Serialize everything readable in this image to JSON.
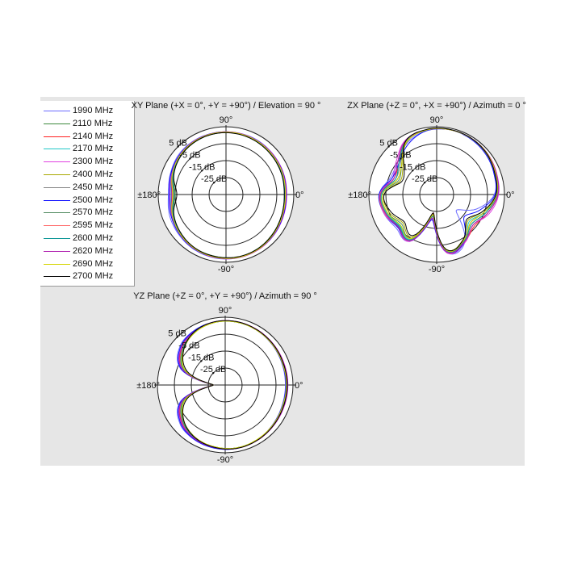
{
  "legend": [
    {
      "name": "1990 MHz",
      "color": "#6a6aff"
    },
    {
      "name": "2110 MHz",
      "color": "#3d8a3d"
    },
    {
      "name": "2140 MHz",
      "color": "#ff2020"
    },
    {
      "name": "2170 MHz",
      "color": "#20c8c8"
    },
    {
      "name": "2300 MHz",
      "color": "#e040e0"
    },
    {
      "name": "2400 MHz",
      "color": "#a8a800"
    },
    {
      "name": "2450 MHz",
      "color": "#888888"
    },
    {
      "name": "2500 MHz",
      "color": "#1010ff"
    },
    {
      "name": "2570 MHz",
      "color": "#4f8a5f"
    },
    {
      "name": "2595 MHz",
      "color": "#ff6a6a"
    },
    {
      "name": "2600 MHz",
      "color": "#109898"
    },
    {
      "name": "2620 MHz",
      "color": "#b020b0"
    },
    {
      "name": "2690 MHz",
      "color": "#d4d400"
    },
    {
      "name": "2700 MHz",
      "color": "#000000"
    }
  ],
  "chart_data": [
    {
      "type": "polar-line",
      "title": "XY Plane (+X = 0°, +Y = +90°) / Elevation = 90 °",
      "angle_labels": {
        "top": "90°",
        "right": "0°",
        "left": "±180°",
        "bottom": "-90°"
      },
      "radial_ticks": [
        {
          "value": 5,
          "label": "5 dB"
        },
        {
          "value": -5,
          "label": "-5 dB"
        },
        {
          "value": -15,
          "label": "-15 dB"
        },
        {
          "value": -25,
          "label": "-25 dB"
        }
      ],
      "radial_range_db": [
        -35,
        5
      ],
      "angles_deg": [
        0,
        20,
        40,
        60,
        80,
        100,
        120,
        140,
        160,
        180,
        200,
        220,
        240,
        260,
        280,
        300,
        320,
        340
      ],
      "series": [
        [
          0.5,
          1,
          1.5,
          2,
          2,
          2,
          2,
          1.5,
          0,
          -1,
          0.5,
          1.5,
          2.5,
          3,
          3,
          2.5,
          2,
          1
        ],
        [
          -0.5,
          0,
          0.5,
          1,
          1.5,
          1.5,
          1,
          0,
          -2,
          -5,
          -2,
          0,
          1.5,
          2,
          2.5,
          2,
          1,
          0
        ],
        [
          0,
          0.5,
          1,
          1.5,
          1.8,
          1.8,
          1.5,
          0.5,
          -1,
          -3,
          -1,
          0.5,
          2,
          2.5,
          2.8,
          2.5,
          1.5,
          0.5
        ],
        [
          0.3,
          0.8,
          1.2,
          1.6,
          1.9,
          1.9,
          1.6,
          0.8,
          -0.8,
          -2.5,
          -0.8,
          0.8,
          2,
          2.6,
          2.9,
          2.6,
          1.7,
          0.8
        ],
        [
          0.8,
          1.2,
          1.5,
          1.8,
          2,
          2,
          1.8,
          1,
          -0.5,
          -2,
          -0.5,
          1,
          2.2,
          2.8,
          3,
          2.8,
          2,
          1.2
        ],
        [
          0.2,
          0.6,
          1,
          1.4,
          1.7,
          1.8,
          1.4,
          0.4,
          -1.2,
          -3.5,
          -1.2,
          0.6,
          1.9,
          2.4,
          2.7,
          2.4,
          1.4,
          0.5
        ],
        [
          -0.2,
          0.3,
          0.8,
          1.3,
          1.6,
          1.6,
          1.3,
          0.3,
          -1.5,
          -4,
          -1.5,
          0.3,
          1.7,
          2.3,
          2.6,
          2.3,
          1.3,
          0.3
        ],
        [
          0.6,
          1,
          1.3,
          1.7,
          1.9,
          2,
          1.7,
          1,
          -0.3,
          -1.5,
          -0.3,
          1,
          2.2,
          2.7,
          2.9,
          2.6,
          1.8,
          1
        ],
        [
          -0.4,
          0.1,
          0.6,
          1.1,
          1.5,
          1.5,
          1.2,
          0.2,
          -1.8,
          -4.5,
          -1.8,
          0.2,
          1.6,
          2.2,
          2.5,
          2.2,
          1.2,
          0.1
        ],
        [
          0,
          0.4,
          0.9,
          1.4,
          1.7,
          1.7,
          1.4,
          0.4,
          -1.4,
          -3.8,
          -1.4,
          0.4,
          1.8,
          2.4,
          2.7,
          2.4,
          1.4,
          0.4
        ],
        [
          -0.3,
          0.2,
          0.7,
          1.2,
          1.6,
          1.6,
          1.3,
          0.3,
          -1.7,
          -4.3,
          -1.7,
          0.3,
          1.7,
          2.3,
          2.6,
          2.3,
          1.3,
          0.2
        ],
        [
          0.4,
          0.8,
          1.2,
          1.6,
          1.9,
          1.9,
          1.6,
          0.7,
          -1,
          -3,
          -1,
          0.7,
          2,
          2.6,
          2.9,
          2.6,
          1.6,
          0.7
        ],
        [
          0.1,
          0.6,
          1,
          1.5,
          1.8,
          1.8,
          1.5,
          0.6,
          -1.2,
          -3.5,
          -1.2,
          0.6,
          1.9,
          2.5,
          2.8,
          2.5,
          1.5,
          0.5
        ],
        [
          -0.6,
          -0.1,
          0.4,
          1,
          1.4,
          1.5,
          1.1,
          0,
          -2.2,
          -6,
          -2.2,
          0,
          1.5,
          2.1,
          2.4,
          2.1,
          1.1,
          0
        ]
      ]
    },
    {
      "type": "polar-line",
      "title": "ZX Plane (+Z = 0°, +X = +90°) / Azimuth = 0 °",
      "angle_labels": {
        "top": "90°",
        "right": "0°",
        "left": "±180°",
        "bottom": "-90°"
      },
      "radial_ticks": [
        {
          "value": 5,
          "label": "5 dB"
        },
        {
          "value": -5,
          "label": "-5 dB"
        },
        {
          "value": -15,
          "label": "-15 dB"
        },
        {
          "value": -25,
          "label": "-25 dB"
        }
      ],
      "radial_range_db": [
        -35,
        5
      ],
      "angles_deg": [
        0,
        20,
        40,
        60,
        80,
        100,
        120,
        140,
        160,
        180,
        200,
        220,
        240,
        260,
        280,
        300,
        320,
        340
      ],
      "series": [
        [
          -1,
          1,
          3,
          4,
          4,
          3,
          0,
          -5,
          -6,
          -1,
          -2,
          -4,
          -3,
          -20,
          0,
          -2,
          -20,
          -10
        ],
        [
          0,
          2,
          3.5,
          4,
          4,
          3.5,
          1,
          -8,
          -10,
          -3,
          -4,
          -7,
          -5,
          -22,
          -1,
          -3,
          -8,
          -4
        ],
        [
          1,
          2.5,
          3.5,
          4,
          4,
          3.5,
          1.5,
          -6,
          -8,
          -2,
          -3,
          -6,
          -4,
          -24,
          -0.5,
          -2.5,
          -6,
          -3
        ],
        [
          0.5,
          2,
          3.5,
          4,
          4,
          3.5,
          1,
          -7,
          -9,
          -2.5,
          -3.5,
          -6.5,
          -4.5,
          -22,
          -1,
          -3,
          -10,
          -5
        ],
        [
          1.5,
          2.5,
          3.5,
          4,
          4,
          3.5,
          2,
          -4,
          -7,
          -1.5,
          -2,
          -5,
          -3,
          -21,
          0,
          -2,
          -7,
          -2
        ],
        [
          0,
          1.5,
          3,
          3.8,
          4,
          3.5,
          0.5,
          -9,
          -12,
          -4,
          -5,
          -9,
          -6,
          -23,
          -2,
          -4,
          -11,
          -6
        ],
        [
          0.3,
          1.8,
          3.3,
          3.9,
          4,
          3.4,
          0.8,
          -7,
          -9,
          -2,
          -3,
          -6,
          -4,
          -22,
          -1,
          -3,
          -9,
          -5
        ],
        [
          -0.5,
          1,
          2.5,
          3.5,
          4,
          3,
          -1,
          -6,
          -7,
          -1,
          -2.5,
          -5,
          -3.5,
          -20,
          -0.5,
          -2.5,
          -14,
          -8
        ],
        [
          0.2,
          1.7,
          3.2,
          3.9,
          4,
          3.4,
          0.9,
          -8,
          -11,
          -3,
          -4,
          -8,
          -5,
          -23,
          -1.5,
          -3.5,
          -9,
          -5
        ],
        [
          1,
          2.2,
          3.5,
          4,
          4,
          3.5,
          1.5,
          -5,
          -8,
          -1.5,
          -2.5,
          -5.5,
          -3.5,
          -22,
          -0.5,
          -2.5,
          -7,
          -3
        ],
        [
          0.6,
          2,
          3.4,
          4,
          4,
          3.5,
          1.2,
          -6,
          -9,
          -2,
          -3,
          -6,
          -4,
          -22,
          -1,
          -3,
          -8,
          -4
        ],
        [
          1.2,
          2.4,
          3.5,
          4,
          4,
          3.6,
          1.8,
          -5,
          -8,
          -1.8,
          -2.8,
          -5.5,
          -3.5,
          -21,
          -0.5,
          -2.5,
          -7,
          -3
        ],
        [
          0.4,
          1.9,
          3.4,
          3.9,
          4,
          3.5,
          0.8,
          -8,
          -10,
          -3,
          -4,
          -7,
          -5,
          -23,
          -1.5,
          -3.5,
          -9,
          -5
        ],
        [
          0,
          1.5,
          3.2,
          4,
          4.2,
          3.8,
          1.5,
          -10,
          -13,
          -4,
          -6,
          -10,
          -7,
          -24,
          -2,
          -4,
          -12,
          -6
        ]
      ]
    },
    {
      "type": "polar-line",
      "title": "YZ Plane (+Z = 0°, +Y = +90°) / Azimuth = 90 °",
      "angle_labels": {
        "top": "90°",
        "right": "0°",
        "left": "±180°",
        "bottom": "-90°"
      },
      "radial_ticks": [
        {
          "value": 5,
          "label": "5 dB"
        },
        {
          "value": -5,
          "label": "-5 dB"
        },
        {
          "value": -15,
          "label": "-15 dB"
        },
        {
          "value": -25,
          "label": "-25 dB"
        }
      ],
      "radial_range_db": [
        -35,
        5
      ],
      "angles_deg": [
        0,
        20,
        40,
        60,
        80,
        100,
        120,
        140,
        160,
        180,
        200,
        220,
        240,
        260,
        280,
        300,
        320,
        340
      ],
      "series": [
        [
          0.5,
          0.8,
          1.5,
          2.3,
          2.8,
          2.8,
          2,
          0,
          -7,
          -28,
          -7,
          0,
          2,
          2.8,
          3,
          2.5,
          1.5,
          0.7
        ],
        [
          1.2,
          1.3,
          1.8,
          2.4,
          2.7,
          2.4,
          0.8,
          -2.5,
          -9.5,
          -28,
          -9.5,
          -2.5,
          0.8,
          2,
          2.7,
          2.4,
          1.8,
          1.2
        ],
        [
          1.8,
          1.8,
          2.2,
          2.6,
          2.9,
          2.6,
          1.2,
          -1.5,
          -8.5,
          -28,
          -8.5,
          -1.5,
          1.2,
          2.3,
          2.9,
          2.6,
          2.2,
          1.8
        ],
        [
          1.5,
          1.5,
          2,
          2.5,
          2.8,
          2.5,
          1,
          -2,
          -9,
          -28,
          -9,
          -2,
          1,
          2.2,
          2.8,
          2.5,
          2,
          1.5
        ],
        [
          2,
          2,
          2.3,
          2.7,
          3,
          2.8,
          1.5,
          -1,
          -8,
          -28,
          -8,
          -1,
          1.5,
          2.5,
          3,
          2.8,
          2.3,
          2
        ],
        [
          1,
          1.1,
          1.7,
          2.3,
          2.7,
          2.5,
          0.8,
          -3,
          -10,
          -28,
          -10,
          -3,
          0.5,
          2,
          2.7,
          2.3,
          1.7,
          1
        ],
        [
          1.4,
          1.4,
          1.9,
          2.4,
          2.8,
          2.5,
          1,
          -2,
          -9,
          -28,
          -9,
          -2,
          1,
          2.2,
          2.8,
          2.5,
          1.9,
          1.4
        ],
        [
          0.8,
          1,
          1.6,
          2.3,
          2.8,
          2.7,
          1.8,
          -0.5,
          -7.5,
          -28,
          -7.5,
          -0.5,
          1.8,
          2.7,
          3,
          2.5,
          1.6,
          0.9
        ],
        [
          1.2,
          1.2,
          1.8,
          2.4,
          2.7,
          2.4,
          0.9,
          -2.5,
          -9.5,
          -28,
          -9.5,
          -2.5,
          0.9,
          2.1,
          2.7,
          2.4,
          1.8,
          1.2
        ],
        [
          1.7,
          1.7,
          2.1,
          2.6,
          2.9,
          2.6,
          1.1,
          -1.8,
          -8.8,
          -28,
          -8.8,
          -1.8,
          1.1,
          2.3,
          2.9,
          2.6,
          2.1,
          1.7
        ],
        [
          1.3,
          1.3,
          1.9,
          2.4,
          2.8,
          2.5,
          1,
          -2.2,
          -9.2,
          -28,
          -9.2,
          -2.2,
          1,
          2.2,
          2.8,
          2.4,
          1.9,
          1.3
        ],
        [
          1.9,
          1.9,
          2.2,
          2.7,
          3,
          2.7,
          1.4,
          -1.2,
          -8.2,
          -28,
          -8.2,
          -1.2,
          1.4,
          2.4,
          3,
          2.7,
          2.2,
          1.9
        ],
        [
          1.1,
          1.2,
          1.7,
          2.3,
          2.7,
          2.4,
          0.7,
          -2.8,
          -9.8,
          -28,
          -9.8,
          -2.8,
          0.7,
          2,
          2.7,
          2.3,
          1.7,
          1.1
        ],
        [
          1.6,
          1.6,
          2.1,
          2.6,
          3,
          2.8,
          1.3,
          -3,
          -11,
          -28,
          -11,
          -3,
          0.8,
          2.3,
          3,
          2.7,
          2.1,
          1.6
        ]
      ]
    }
  ]
}
